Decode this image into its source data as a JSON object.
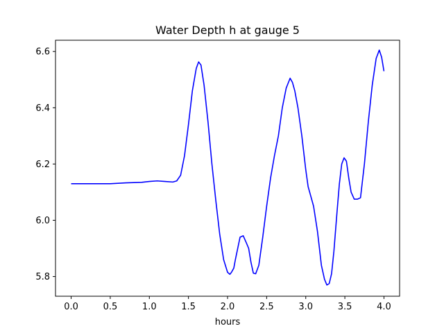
{
  "chart_data": {
    "type": "line",
    "title": "Water Depth h at gauge 5",
    "xlabel": "hours",
    "ylabel": "",
    "xlim": [
      -0.2,
      4.2
    ],
    "ylim": [
      5.73,
      6.64
    ],
    "xticks": [
      "0.0",
      "0.5",
      "1.0",
      "1.5",
      "2.0",
      "2.5",
      "3.0",
      "3.5",
      "4.0"
    ],
    "yticks": [
      "5.8",
      "6.0",
      "6.2",
      "6.4",
      "6.6"
    ],
    "grid": false,
    "series": [
      {
        "color": "#0000ff",
        "x": [
          0.0,
          0.3,
          0.5,
          0.7,
          0.9,
          1.0,
          1.1,
          1.2,
          1.3,
          1.35,
          1.4,
          1.45,
          1.5,
          1.55,
          1.6,
          1.63,
          1.66,
          1.7,
          1.75,
          1.8,
          1.85,
          1.9,
          1.95,
          2.0,
          2.03,
          2.05,
          2.08,
          2.1,
          2.13,
          2.16,
          2.2,
          2.24,
          2.27,
          2.3,
          2.33,
          2.36,
          2.4,
          2.45,
          2.5,
          2.55,
          2.6,
          2.65,
          2.7,
          2.75,
          2.8,
          2.83,
          2.86,
          2.9,
          2.95,
          3.0,
          3.03,
          3.06,
          3.1,
          3.15,
          3.2,
          3.24,
          3.27,
          3.3,
          3.33,
          3.36,
          3.4,
          3.43,
          3.46,
          3.49,
          3.52,
          3.55,
          3.58,
          3.62,
          3.66,
          3.7,
          3.75,
          3.8,
          3.85,
          3.9,
          3.94,
          3.97,
          4.0
        ],
        "y": [
          6.13,
          6.13,
          6.13,
          6.133,
          6.135,
          6.138,
          6.14,
          6.138,
          6.136,
          6.14,
          6.16,
          6.23,
          6.34,
          6.46,
          6.54,
          6.563,
          6.552,
          6.48,
          6.35,
          6.2,
          6.07,
          5.95,
          5.86,
          5.815,
          5.808,
          5.815,
          5.83,
          5.86,
          5.9,
          5.94,
          5.945,
          5.92,
          5.9,
          5.85,
          5.812,
          5.81,
          5.84,
          5.94,
          6.05,
          6.15,
          6.23,
          6.3,
          6.4,
          6.47,
          6.505,
          6.49,
          6.46,
          6.4,
          6.3,
          6.18,
          6.12,
          6.09,
          6.05,
          5.96,
          5.84,
          5.79,
          5.77,
          5.775,
          5.81,
          5.89,
          6.03,
          6.13,
          6.2,
          6.222,
          6.21,
          6.15,
          6.1,
          6.075,
          6.075,
          6.08,
          6.2,
          6.35,
          6.48,
          6.575,
          6.605,
          6.58,
          6.53
        ]
      }
    ]
  }
}
